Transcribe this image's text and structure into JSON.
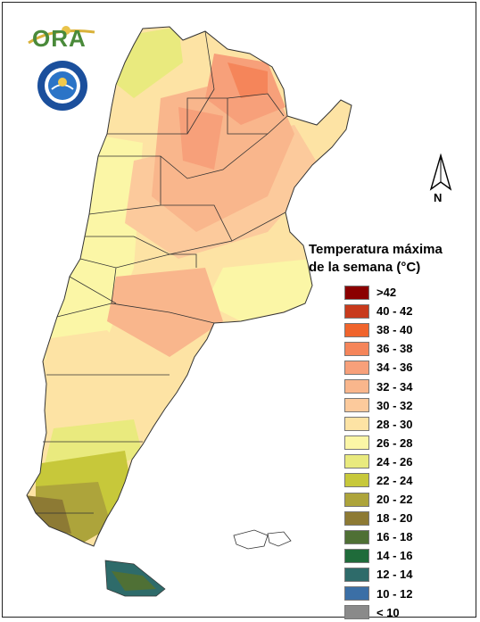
{
  "logo": {
    "text": "ORA"
  },
  "north_arrow": {
    "label": "N"
  },
  "legend": {
    "title_line1": "Temperatura máxima",
    "title_line2": "de la semana (°C)",
    "items": [
      {
        "label": ">42",
        "color": "#8b0000"
      },
      {
        "label": "40 - 42",
        "color": "#c83a1c"
      },
      {
        "label": "38 - 40",
        "color": "#f0642c"
      },
      {
        "label": "36 - 38",
        "color": "#f5855a"
      },
      {
        "label": "34 - 36",
        "color": "#f7a07a"
      },
      {
        "label": "32 - 34",
        "color": "#f9b68c"
      },
      {
        "label": "30 - 32",
        "color": "#fcca9c"
      },
      {
        "label": "28 - 30",
        "color": "#fde3a4"
      },
      {
        "label": "26 - 28",
        "color": "#fbf6a6"
      },
      {
        "label": "24 - 26",
        "color": "#e9ea7e"
      },
      {
        "label": "22 - 24",
        "color": "#c7c83a"
      },
      {
        "label": "20 - 22",
        "color": "#ada43b"
      },
      {
        "label": "18 - 20",
        "color": "#8d7a34"
      },
      {
        "label": "16 - 18",
        "color": "#4f7035"
      },
      {
        "label": "14 - 16",
        "color": "#1f6b3a"
      },
      {
        "label": "12 - 14",
        "color": "#2e6b6a"
      },
      {
        "label": "10 - 12",
        "color": "#3b6fa6"
      },
      {
        "label": "< 10",
        "color": "#8a8a8a"
      }
    ]
  }
}
